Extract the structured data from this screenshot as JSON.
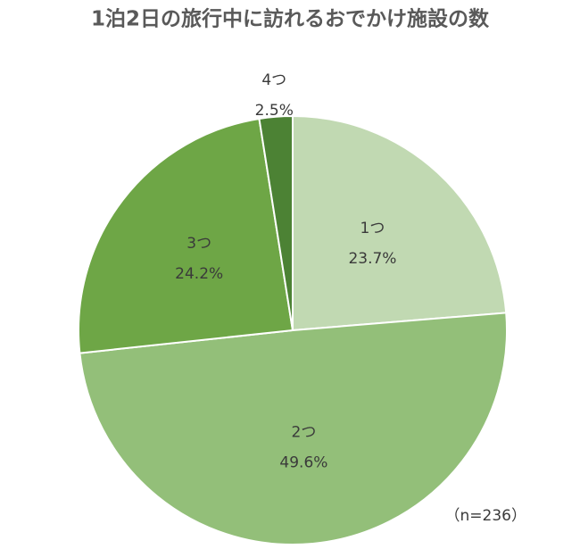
{
  "chart_data": {
    "type": "pie",
    "title": "1泊2日の旅行中に訪れるおでかけ施設の数",
    "categories": [
      "1つ",
      "2つ",
      "3つ",
      "4つ"
    ],
    "values": [
      23.7,
      49.6,
      24.2,
      2.5
    ],
    "value_labels": [
      "23.7%",
      "49.6%",
      "24.2%",
      "2.5%"
    ],
    "colors": [
      "#c1d9b2",
      "#93bf79",
      "#6ea646",
      "#4c8234"
    ],
    "annotation": "（n=236）"
  }
}
